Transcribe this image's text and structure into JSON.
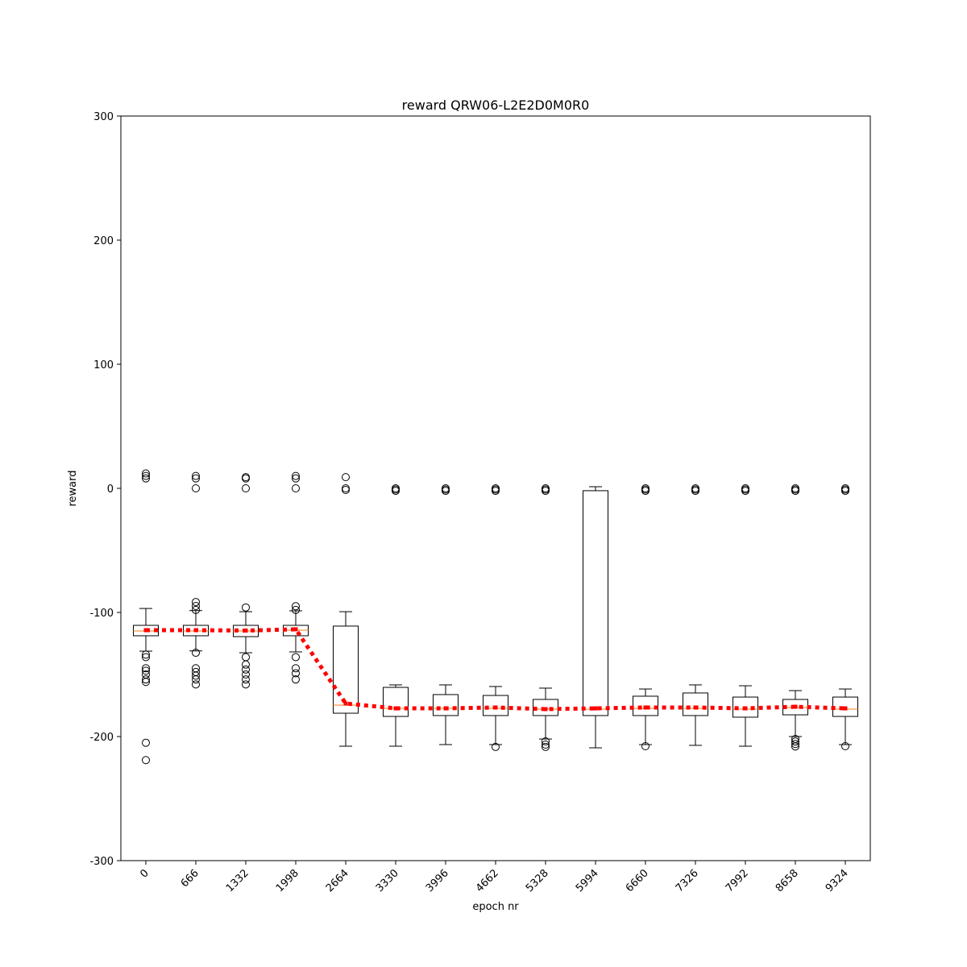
{
  "chart_data": {
    "type": "box",
    "title": "reward QRW06-L2E2D0M0R0",
    "x_label": "epoch nr",
    "y_label": "reward",
    "categories": [
      "0",
      "666",
      "1332",
      "1998",
      "2664",
      "3330",
      "3996",
      "4662",
      "5328",
      "5994",
      "6660",
      "7326",
      "7992",
      "8658",
      "9324"
    ],
    "ylim": [
      -300,
      300
    ],
    "yticks": [
      -300,
      -200,
      -100,
      0,
      100,
      200,
      300
    ],
    "box_color": "#000000",
    "median_color": "#ff7f0e",
    "mean_color": "#ff0000",
    "boxes": [
      {
        "whislo": -131.2,
        "q1": -118.8,
        "med": -114.9,
        "q3": -110.4,
        "whishi": -96.8,
        "mean": -114.3,
        "fliers": [
          12,
          10,
          8,
          -134,
          -136,
          -145,
          -147,
          -150,
          -154,
          -156,
          -205,
          -219
        ]
      },
      {
        "whislo": -131,
        "q1": -118.8,
        "med": -114.9,
        "q3": -110.4,
        "whishi": -98.5,
        "mean": -114.3,
        "fliers": [
          10,
          8,
          0,
          -91.6,
          -94.8,
          -98,
          -132.5,
          -145,
          -148,
          -151,
          -154,
          -158
        ]
      },
      {
        "whislo": -132.5,
        "q1": -119.5,
        "med": -114.9,
        "q3": -110.4,
        "whishi": -99.4,
        "mean": -114.6,
        "fliers": [
          9,
          8,
          0,
          -96,
          -136,
          -142,
          -146,
          -150,
          -154,
          -158
        ]
      },
      {
        "whislo": -131.8,
        "q1": -118.8,
        "med": -114.3,
        "q3": -110.4,
        "whishi": -98.7,
        "mean": -113.6,
        "fliers": [
          10,
          8,
          0,
          -95,
          -98,
          -136,
          -145,
          -149,
          -154
        ]
      },
      {
        "whislo": -207.8,
        "q1": -181.2,
        "med": -174.7,
        "q3": -111,
        "whishi": -99.4,
        "mean": -173.4,
        "fliers": [
          9,
          0,
          -1.3
        ]
      },
      {
        "whislo": -207.8,
        "q1": -183.8,
        "med": -177.3,
        "q3": -160.4,
        "whishi": -158.4,
        "mean": -177.3,
        "fliers": [
          0,
          -1,
          -2
        ]
      },
      {
        "whislo": -206.5,
        "q1": -183.1,
        "med": -177.3,
        "q3": -166.2,
        "whishi": -158.4,
        "mean": -177.3,
        "fliers": [
          0,
          -1,
          -2
        ]
      },
      {
        "whislo": -206.5,
        "q1": -183.1,
        "med": -177.3,
        "q3": -166.9,
        "whishi": -159.7,
        "mean": -176.6,
        "fliers": [
          0,
          -1,
          -2,
          -208.4
        ]
      },
      {
        "whislo": -202,
        "q1": -183.1,
        "med": -177.9,
        "q3": -170.1,
        "whishi": -161,
        "mean": -177.9,
        "fliers": [
          0,
          -1,
          -2,
          -203.9,
          -206.5,
          -208.4
        ]
      },
      {
        "whislo": -209.1,
        "q1": -183.1,
        "med": -177.9,
        "q3": -1.9,
        "whishi": 1.3,
        "mean": -177.3,
        "fliers": []
      },
      {
        "whislo": -206.5,
        "q1": -183.1,
        "med": -177.3,
        "q3": -167.5,
        "whishi": -161.7,
        "mean": -176.6,
        "fliers": [
          0,
          -1,
          -2,
          -207.8
        ]
      },
      {
        "whislo": -207.1,
        "q1": -183.1,
        "med": -177.3,
        "q3": -164.9,
        "whishi": -158.4,
        "mean": -176.6,
        "fliers": [
          0,
          -1,
          -2
        ]
      },
      {
        "whislo": -207.8,
        "q1": -184.4,
        "med": -177.9,
        "q3": -168.2,
        "whishi": -159.1,
        "mean": -177.3,
        "fliers": [
          0,
          -1,
          -2
        ]
      },
      {
        "whislo": -200,
        "q1": -182.5,
        "med": -176.6,
        "q3": -170.1,
        "whishi": -163,
        "mean": -176,
        "fliers": [
          0,
          -1,
          -2,
          -202,
          -204,
          -206,
          -208
        ]
      },
      {
        "whislo": -206.5,
        "q1": -183.8,
        "med": -177.9,
        "q3": -168.2,
        "whishi": -161.7,
        "mean": -177.3,
        "fliers": [
          0,
          -1,
          -2,
          -207.8
        ]
      }
    ]
  }
}
